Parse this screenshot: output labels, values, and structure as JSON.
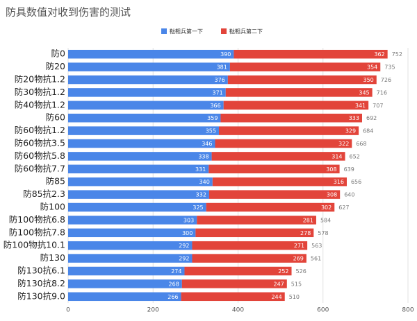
{
  "chart_data": {
    "type": "stacked-barh",
    "title": "防具数值对收到伤害的测试",
    "categories": [
      "防0",
      "防20",
      "防20物抗1.2",
      "防30物抗1.2",
      "防40物抗1.2",
      "防60",
      "防60物抗1.2",
      "防60物抗3.5",
      "防60物抗5.8",
      "防60物抗7.7",
      "防85",
      "防85抗2.3",
      "防100",
      "防100物抗6.8",
      "防100物抗7.8",
      "防100物抗10.1",
      "防130",
      "防130抗6.1",
      "防130抗8.2",
      "防130抗9.0"
    ],
    "series": [
      {
        "name": "鞑靼兵第一下",
        "color": "#4a86e8",
        "values": [
          390,
          381,
          376,
          371,
          366,
          359,
          355,
          346,
          338,
          331,
          340,
          332,
          325,
          303,
          300,
          292,
          292,
          274,
          268,
          266
        ]
      },
      {
        "name": "鞑靼兵第二下",
        "color": "#e2443a",
        "values": [
          362,
          354,
          350,
          345,
          341,
          333,
          329,
          322,
          314,
          308,
          316,
          308,
          302,
          281,
          278,
          271,
          269,
          252,
          247,
          244
        ]
      }
    ],
    "totals": [
      752,
      735,
      726,
      716,
      707,
      692,
      684,
      668,
      652,
      639,
      656,
      640,
      627,
      584,
      578,
      563,
      561,
      526,
      515,
      510
    ],
    "xlim": [
      0,
      800
    ],
    "xticks": [
      0,
      200,
      400,
      600,
      800
    ],
    "grid": true,
    "legend": "top"
  }
}
